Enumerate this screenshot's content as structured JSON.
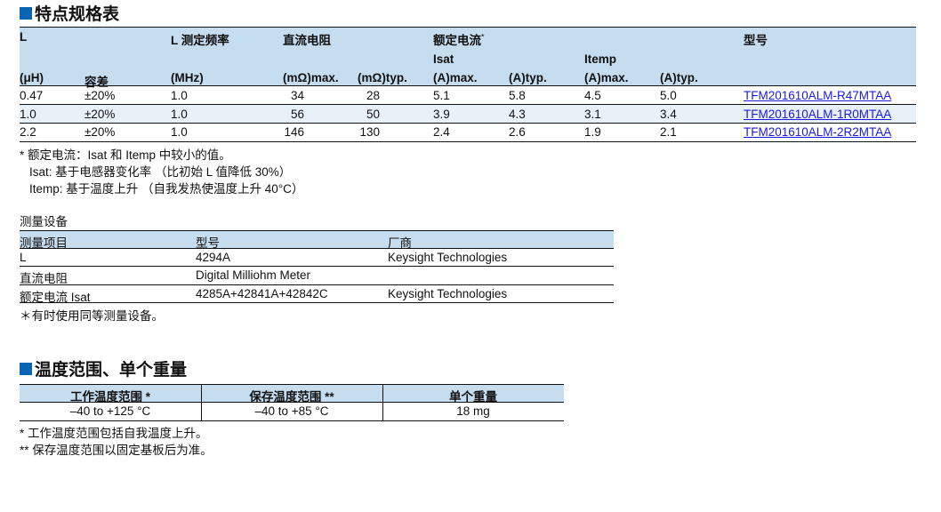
{
  "section1": {
    "title": "特点规格表",
    "headers": {
      "l": "L",
      "l_unit": "(μH)",
      "tol": "容差",
      "freq": "L 测定频率",
      "freq_unit": "(MHz)",
      "rdc": "直流电阻",
      "rdc_max": "(mΩ)max.",
      "rdc_typ": "(mΩ)typ.",
      "rated": "额定电流",
      "rated_mark": "*",
      "isat": "Isat",
      "isat_max": "(A)max.",
      "isat_typ": "(A)typ.",
      "itemp": "Itemp",
      "itemp_max": "(A)max.",
      "itemp_typ": "(A)typ.",
      "part": "型号"
    },
    "rows": [
      {
        "l": "0.47",
        "tol": "±20%",
        "freq": "1.0",
        "rmax": "34",
        "rtyp": "28",
        "isat_max": "5.1",
        "isat_typ": "5.8",
        "itemp_max": "4.5",
        "itemp_typ": "5.0",
        "part": "TFM201610ALM-R47MTAA"
      },
      {
        "l": "1.0",
        "tol": "±20%",
        "freq": "1.0",
        "rmax": "56",
        "rtyp": "50",
        "isat_max": "3.9",
        "isat_typ": "4.3",
        "itemp_max": "3.1",
        "itemp_typ": "3.4",
        "part": "TFM201610ALM-1R0MTAA"
      },
      {
        "l": "2.2",
        "tol": "±20%",
        "freq": "1.0",
        "rmax": "146",
        "rtyp": "130",
        "isat_max": "2.4",
        "isat_typ": "2.6",
        "itemp_max": "1.9",
        "itemp_typ": "2.1",
        "part": "TFM201610ALM-2R2MTAA"
      }
    ],
    "notes": [
      "* 额定电流：Isat 和 Itemp 中较小的值。",
      "Isat: 基于电感器变化率 （比初始 L 值降低 30%）",
      "Itemp: 基于温度上升 （自我发热使温度上升 40°C）"
    ]
  },
  "equipment": {
    "title": "测量设备",
    "headers": [
      "测量项目",
      "型号",
      "厂商"
    ],
    "rows": [
      [
        "L",
        "4294A",
        "Keysight Technologies"
      ],
      [
        "直流电阻",
        "Digital Milliohm Meter",
        ""
      ],
      [
        "额定电流 Isat",
        "4285A+42841A+42842C",
        "Keysight Technologies"
      ]
    ],
    "note": "＊有时使用同等测量设备。"
  },
  "section2": {
    "title": "温度范围、单个重量",
    "headers": [
      "工作温度范围 *",
      "保存温度范围 **",
      "单个重量"
    ],
    "values": [
      "–40 to +125 °C",
      "–40 to +85 °C",
      "18 mg"
    ],
    "notes": [
      "*  工作温度范围包括自我温度上升。",
      "** 保存温度范围以固定基板后为准。"
    ]
  },
  "colors": {
    "accent": "#0a64b4",
    "header_bg": "#c6dcef",
    "alt_row": "#e8f0f8",
    "link": "#1a1ae6"
  }
}
